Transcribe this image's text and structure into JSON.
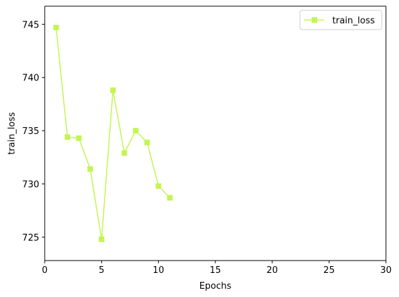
{
  "chart_data": {
    "type": "line",
    "xlabel": "Epochs",
    "ylabel": "train_loss",
    "xlim": [
      0,
      30
    ],
    "ylim": [
      722.8,
      746.7
    ],
    "xticks": [
      0,
      5,
      10,
      15,
      20,
      25,
      30
    ],
    "yticks": [
      725,
      730,
      735,
      740,
      745
    ],
    "grid": false,
    "legend_position": "top-right",
    "series": [
      {
        "name": "train_loss",
        "color": "#c3f551",
        "marker": "square",
        "x": [
          1,
          2,
          3,
          4,
          5,
          6,
          7,
          8,
          9,
          10,
          11
        ],
        "y": [
          744.7,
          734.4,
          734.3,
          731.4,
          724.8,
          738.8,
          732.9,
          735.0,
          733.9,
          729.8,
          728.7
        ]
      }
    ]
  }
}
